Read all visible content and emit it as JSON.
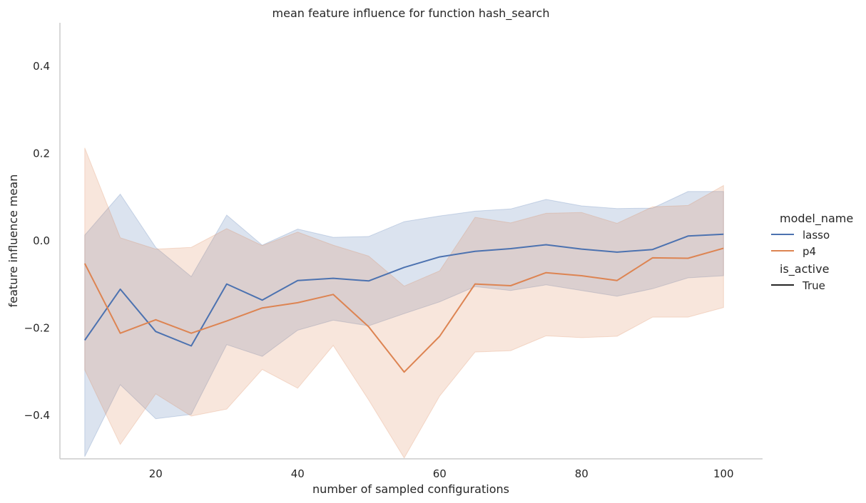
{
  "chart_data": {
    "type": "line",
    "title": "mean feature influence for function hash_search",
    "xlabel": "number of sampled configurations",
    "ylabel": "feature influence mean",
    "xlim": [
      6.5,
      105.5
    ],
    "ylim": [
      -0.5,
      0.5
    ],
    "xticks": [
      20,
      40,
      60,
      80,
      100
    ],
    "xtick_labels": [
      "20",
      "40",
      "60",
      "80",
      "100"
    ],
    "yticks": [
      -0.4,
      -0.2,
      0.0,
      0.2,
      0.4
    ],
    "ytick_labels": [
      "−0.4",
      "−0.2",
      "0.0",
      "0.2",
      "0.4"
    ],
    "grid": false,
    "legend_position": "right",
    "x": [
      10,
      15,
      20,
      25,
      30,
      35,
      40,
      45,
      50,
      55,
      60,
      65,
      70,
      75,
      80,
      85,
      90,
      95,
      100
    ],
    "legend": {
      "hue_title": "model_name",
      "style_title": "is_active",
      "style_entries": [
        "True"
      ]
    },
    "series": [
      {
        "name": "lasso",
        "color": "#4c72b0",
        "values": [
          -0.228,
          -0.111,
          -0.208,
          -0.241,
          -0.099,
          -0.136,
          -0.091,
          -0.086,
          -0.092,
          -0.061,
          -0.037,
          -0.024,
          -0.018,
          -0.009,
          -0.019,
          -0.026,
          -0.02,
          0.011,
          0.015
        ],
        "ci_low": [
          -0.495,
          -0.33,
          -0.408,
          -0.398,
          -0.238,
          -0.265,
          -0.205,
          -0.182,
          -0.195,
          -0.167,
          -0.14,
          -0.105,
          -0.114,
          -0.101,
          -0.114,
          -0.127,
          -0.11,
          -0.085,
          -0.08
        ],
        "ci_high": [
          0.013,
          0.107,
          -0.015,
          -0.082,
          0.059,
          -0.01,
          0.027,
          0.008,
          0.01,
          0.044,
          0.057,
          0.068,
          0.073,
          0.095,
          0.08,
          0.074,
          0.075,
          0.113,
          0.113
        ]
      },
      {
        "name": "p4",
        "color": "#dd8452",
        "values": [
          -0.052,
          -0.212,
          -0.181,
          -0.212,
          -0.184,
          -0.154,
          -0.142,
          -0.123,
          -0.197,
          -0.301,
          -0.219,
          -0.099,
          -0.103,
          -0.073,
          -0.08,
          -0.091,
          -0.039,
          -0.04,
          -0.017
        ],
        "ci_low": [
          -0.296,
          -0.467,
          -0.351,
          -0.402,
          -0.386,
          -0.295,
          -0.338,
          -0.24,
          -0.365,
          -0.498,
          -0.356,
          -0.255,
          -0.252,
          -0.218,
          -0.222,
          -0.219,
          -0.175,
          -0.175,
          -0.153
        ],
        "ci_high": [
          0.213,
          0.007,
          -0.019,
          -0.015,
          0.028,
          -0.011,
          0.02,
          -0.01,
          -0.035,
          -0.104,
          -0.069,
          0.054,
          0.041,
          0.063,
          0.065,
          0.04,
          0.078,
          0.081,
          0.127
        ]
      }
    ]
  }
}
